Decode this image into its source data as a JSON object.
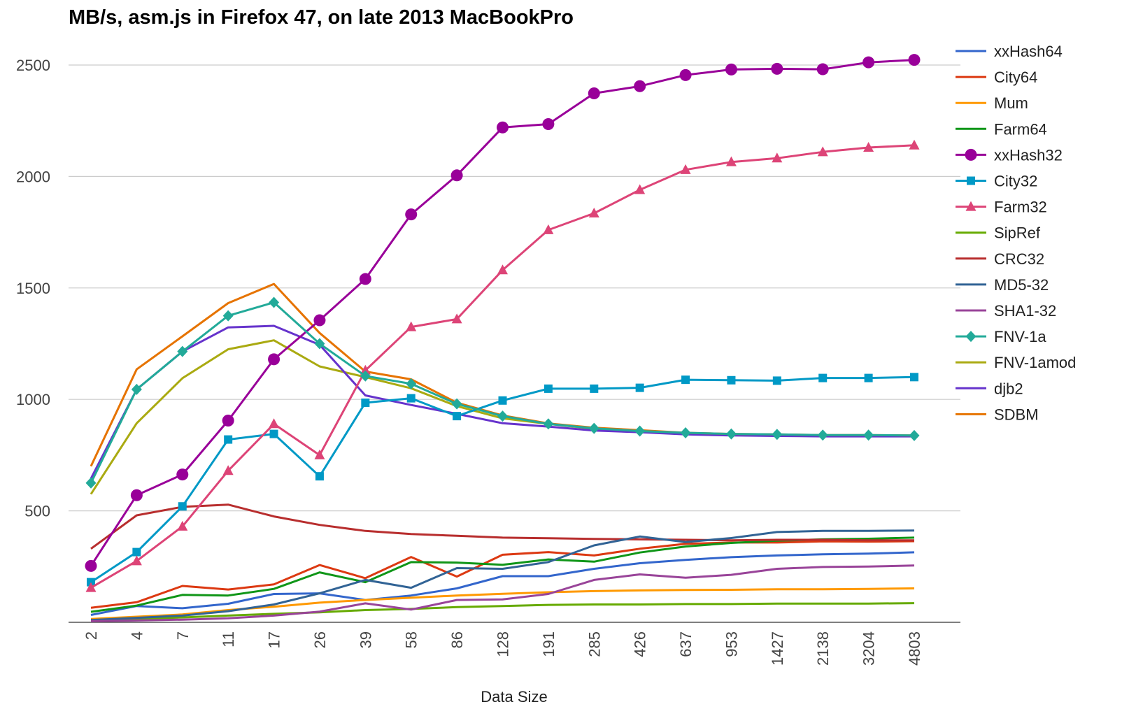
{
  "chart_data": {
    "type": "line",
    "title": "MB/s, asm.js in Firefox 47, on late 2013 MacBookPro",
    "xlabel": "Data Size",
    "ylabel": "",
    "ylim": [
      0,
      2500
    ],
    "yticks": [
      500,
      1000,
      1500,
      2000,
      2500
    ],
    "grid": true,
    "legend_position": "right",
    "categories": [
      "2",
      "4",
      "7",
      "11",
      "17",
      "26",
      "39",
      "58",
      "86",
      "128",
      "191",
      "285",
      "426",
      "637",
      "953",
      "1427",
      "2138",
      "3204",
      "4803"
    ],
    "series": [
      {
        "name": "xxHash64",
        "color": "#3366cc",
        "marker": "none",
        "values": [
          33,
          73,
          63,
          83,
          127,
          130,
          100,
          120,
          152,
          207,
          207,
          240,
          265,
          280,
          292,
          300,
          305,
          308,
          314
        ]
      },
      {
        "name": "City64",
        "color": "#dc3912",
        "marker": "none",
        "values": [
          65,
          90,
          163,
          147,
          170,
          257,
          198,
          293,
          205,
          303,
          315,
          300,
          330,
          352,
          358,
          358,
          363,
          362,
          364
        ]
      },
      {
        "name": "Mum",
        "color": "#ff9900",
        "marker": "none",
        "values": [
          15,
          25,
          35,
          55,
          70,
          88,
          100,
          110,
          120,
          128,
          135,
          140,
          143,
          145,
          146,
          148,
          148,
          150,
          152
        ]
      },
      {
        "name": "Farm64",
        "color": "#109618",
        "marker": "none",
        "values": [
          47,
          75,
          123,
          120,
          150,
          224,
          180,
          270,
          268,
          258,
          282,
          272,
          313,
          340,
          356,
          366,
          372,
          375,
          380
        ]
      },
      {
        "name": "xxHash32",
        "color": "#990099",
        "marker": "circle",
        "values": [
          253,
          570,
          663,
          905,
          1180,
          1355,
          1540,
          1830,
          2005,
          2220,
          2235,
          2373,
          2405,
          2455,
          2480,
          2483,
          2481,
          2512,
          2523
        ]
      },
      {
        "name": "City32",
        "color": "#0099c6",
        "marker": "square",
        "values": [
          180,
          315,
          520,
          820,
          845,
          655,
          985,
          1005,
          925,
          995,
          1048,
          1048,
          1052,
          1088,
          1086,
          1084,
          1096,
          1096,
          1100
        ]
      },
      {
        "name": "Farm32",
        "color": "#dd4477",
        "marker": "triangle",
        "values": [
          155,
          275,
          430,
          680,
          890,
          750,
          1130,
          1325,
          1360,
          1580,
          1760,
          1835,
          1940,
          2030,
          2065,
          2082,
          2110,
          2130,
          2140
        ]
      },
      {
        "name": "SipRef",
        "color": "#66aa00",
        "marker": "none",
        "values": [
          8,
          15,
          22,
          30,
          38,
          45,
          55,
          60,
          68,
          73,
          78,
          80,
          80,
          82,
          82,
          84,
          84,
          84,
          86
        ]
      },
      {
        "name": "CRC32",
        "color": "#b82e2e",
        "marker": "none",
        "values": [
          330,
          480,
          518,
          528,
          475,
          437,
          410,
          396,
          388,
          380,
          377,
          374,
          372,
          370,
          368,
          370,
          370,
          368,
          368
        ]
      },
      {
        "name": "MD5-32",
        "color": "#316395",
        "marker": "none",
        "values": [
          10,
          20,
          30,
          50,
          80,
          130,
          190,
          155,
          243,
          240,
          270,
          345,
          385,
          360,
          378,
          405,
          410,
          410,
          412
        ]
      },
      {
        "name": "SHA1-32",
        "color": "#994499",
        "marker": "none",
        "values": [
          5,
          8,
          12,
          18,
          30,
          48,
          85,
          57,
          100,
          103,
          127,
          190,
          215,
          200,
          213,
          240,
          248,
          250,
          255
        ]
      },
      {
        "name": "FNV-1a",
        "color": "#22aa99",
        "marker": "diamond",
        "values": [
          625,
          1045,
          1215,
          1375,
          1435,
          1250,
          1105,
          1070,
          980,
          925,
          890,
          870,
          858,
          850,
          845,
          843,
          840,
          840,
          838
        ]
      },
      {
        "name": "FNV-1amod",
        "color": "#aaaa11",
        "marker": "none",
        "values": [
          575,
          893,
          1095,
          1225,
          1265,
          1148,
          1100,
          1050,
          970,
          915,
          890,
          868,
          858,
          848,
          843,
          840,
          838,
          838,
          836
        ]
      },
      {
        "name": "djb2",
        "color": "#6633cc",
        "marker": "none",
        "values": [
          645,
          1045,
          1215,
          1323,
          1330,
          1245,
          1018,
          975,
          935,
          893,
          878,
          860,
          853,
          843,
          838,
          836,
          834,
          834,
          834
        ]
      },
      {
        "name": "SDBM",
        "color": "#e67300",
        "marker": "none",
        "values": [
          700,
          1135,
          1283,
          1432,
          1518,
          1298,
          1125,
          1090,
          985,
          928,
          892,
          873,
          862,
          850,
          845,
          843,
          840,
          840,
          838
        ]
      }
    ]
  }
}
